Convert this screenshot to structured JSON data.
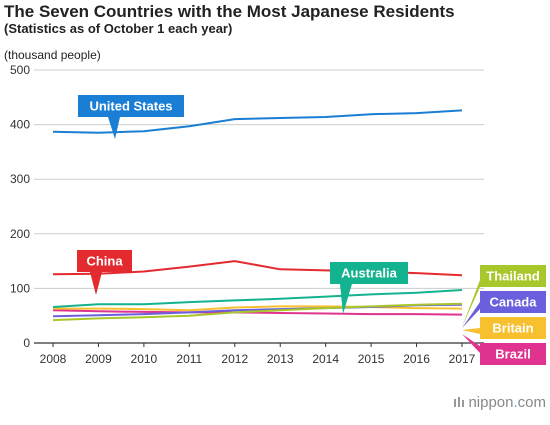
{
  "header": {
    "title": "The Seven Countries with the Most Japanese Residents",
    "subtitle": "(Statistics as of October 1 each year)",
    "unit": "(thousand people)"
  },
  "brand": {
    "prefix": "nippon",
    "dot": ".",
    "suffix": "com",
    "icon": "nippon-logo-icon"
  },
  "chart_data": {
    "type": "line",
    "title": "The Seven Countries with the Most Japanese Residents",
    "subtitle": "(Statistics as of October 1 each year)",
    "ylabel": "(thousand people)",
    "xlabel": "",
    "x": [
      "2008",
      "2009",
      "2010",
      "2011",
      "2012",
      "2013",
      "2014",
      "2015",
      "2016",
      "2017"
    ],
    "ylim": [
      0,
      500
    ],
    "yticks": [
      0,
      100,
      200,
      300,
      400,
      500
    ],
    "grid": "horizontal",
    "legend": "labels on chart",
    "series": [
      {
        "name": "United States",
        "color": "#1a7fd4",
        "label_position": "upper-left",
        "values": [
          387,
          385,
          388,
          397,
          410,
          412,
          414,
          419,
          421,
          426
        ]
      },
      {
        "name": "China",
        "color": "#e32a2f",
        "label_position": "mid-left",
        "values": [
          126,
          127,
          131,
          140,
          150,
          135,
          133,
          131,
          128,
          124
        ]
      },
      {
        "name": "Australia",
        "color": "#14b38f",
        "label_position": "mid-right",
        "values": [
          66,
          71,
          71,
          75,
          78,
          81,
          85,
          89,
          92,
          97
        ]
      },
      {
        "name": "Thailand",
        "color": "#a7c72b",
        "label_position": "right",
        "values": [
          42,
          45,
          47,
          50,
          56,
          60,
          64,
          67,
          70,
          72
        ]
      },
      {
        "name": "Canada",
        "color": "#6a5fdc",
        "label_position": "right",
        "values": [
          49,
          51,
          53,
          56,
          60,
          62,
          64,
          66,
          69,
          70
        ]
      },
      {
        "name": "Britain",
        "color": "#f6c02e",
        "label_position": "right",
        "values": [
          63,
          63,
          62,
          60,
          65,
          67,
          67,
          66,
          64,
          63
        ]
      },
      {
        "name": "Brazil",
        "color": "#e0338f",
        "label_position": "right",
        "values": [
          60,
          58,
          57,
          56,
          56,
          55,
          54,
          53,
          53,
          52
        ]
      }
    ]
  }
}
